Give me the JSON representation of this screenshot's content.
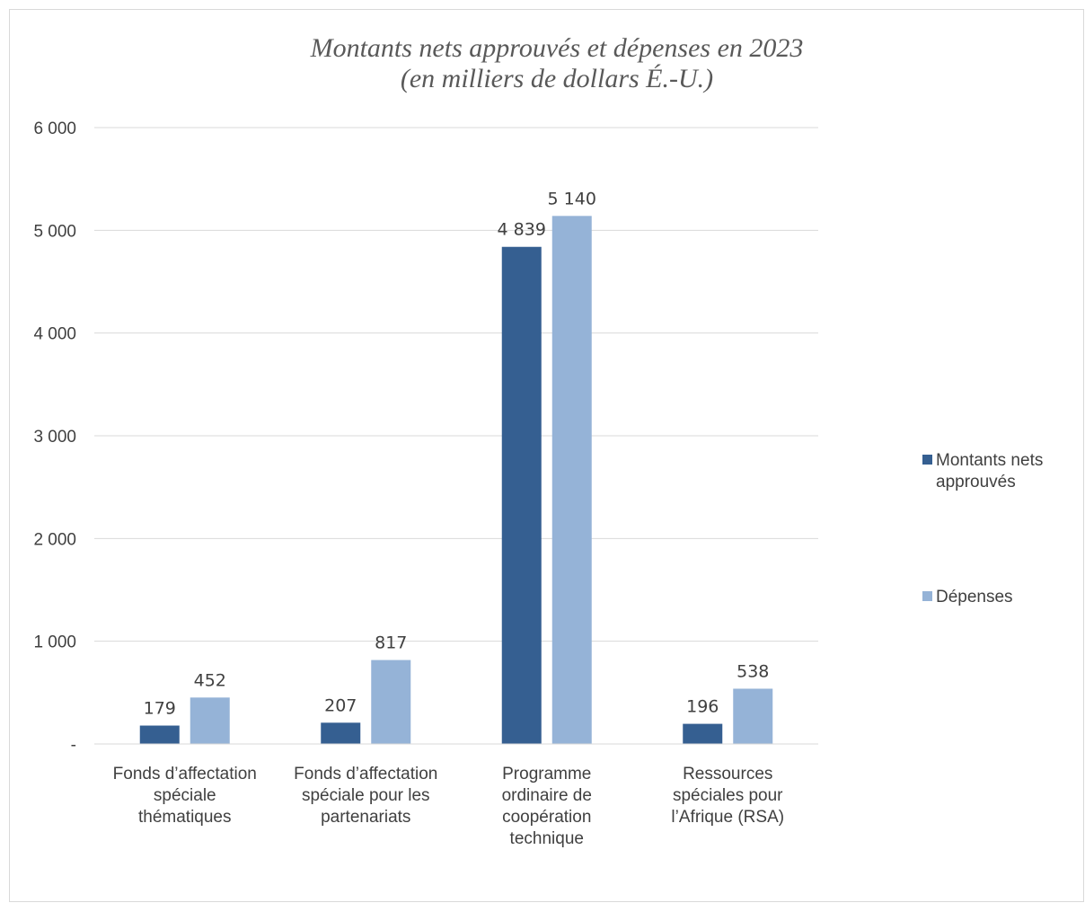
{
  "chart_data": {
    "type": "bar",
    "title": [
      "Montants nets approuvés et dépenses en 2023",
      "(en milliers de dollars É.-U.)"
    ],
    "xlabel": "",
    "ylabel": "",
    "ylim": [
      0,
      6000
    ],
    "yticks": [
      {
        "value": 0,
        "label": "-"
      },
      {
        "value": 1000,
        "label": "1 000"
      },
      {
        "value": 2000,
        "label": "2 000"
      },
      {
        "value": 3000,
        "label": "3 000"
      },
      {
        "value": 4000,
        "label": "4 000"
      },
      {
        "value": 5000,
        "label": "5 000"
      },
      {
        "value": 6000,
        "label": "6 000"
      }
    ],
    "grid": true,
    "legend_position": "right",
    "categories": [
      [
        "Fonds d’affectation",
        "spéciale",
        "thématiques"
      ],
      [
        "Fonds d’affectation",
        "spéciale pour les",
        "partenariats"
      ],
      [
        "Programme",
        "ordinaire de",
        "coopération",
        "technique"
      ],
      [
        "Ressources",
        "spéciales pour",
        "l’Afrique (RSA)"
      ]
    ],
    "series": [
      {
        "name": [
          "Montants nets",
          "approuvés"
        ],
        "color": "#355f91",
        "values": [
          179,
          207,
          4839,
          196
        ],
        "labels": [
          "179",
          "207",
          "4 839",
          "196"
        ]
      },
      {
        "name": [
          "Dépenses"
        ],
        "color": "#95b3d7",
        "values": [
          452,
          817,
          5140,
          538
        ],
        "labels": [
          "452",
          "817",
          "5 140",
          "538"
        ]
      }
    ]
  }
}
